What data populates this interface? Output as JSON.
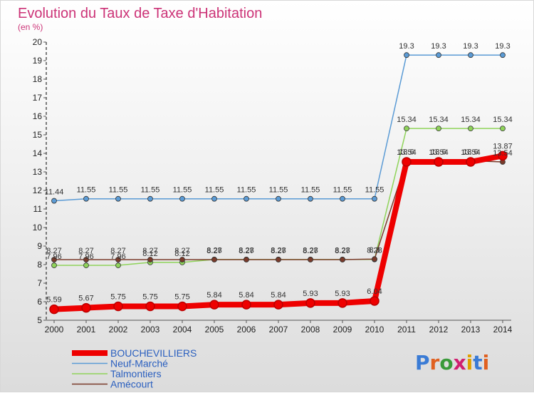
{
  "chart_data": {
    "type": "line",
    "title": "Evolution du Taux de Taxe d'Habitation",
    "subtitle": "(en %)",
    "x": [
      "2000",
      "2001",
      "2002",
      "2003",
      "2004",
      "2005",
      "2006",
      "2007",
      "2008",
      "2009",
      "2010",
      "2011",
      "2012",
      "2013",
      "2014"
    ],
    "ylim": [
      5,
      20
    ],
    "yticks": [
      5,
      6,
      7,
      8,
      9,
      10,
      11,
      12,
      13,
      14,
      15,
      16,
      17,
      18,
      19,
      20
    ],
    "grid": false,
    "legend_position": "bottom-left",
    "series": [
      {
        "name": "Neuf-Marché",
        "color": "#5b9bd5",
        "values": [
          11.44,
          11.55,
          11.55,
          11.55,
          11.55,
          11.55,
          11.55,
          11.55,
          11.55,
          11.55,
          11.55,
          19.3,
          19.3,
          19.3,
          19.3
        ],
        "labels": [
          "11.44",
          "11.55",
          "11.55",
          "11.55",
          "11.55",
          "11.55",
          "11.55",
          "11.55",
          "11.55",
          "11.55",
          "11.55",
          "19.3",
          "19.3",
          "19.3",
          "19.3"
        ]
      },
      {
        "name": "Talmontiers",
        "color": "#8fd35a",
        "values": [
          7.96,
          7.96,
          7.96,
          8.12,
          8.12,
          8.28,
          8.28,
          8.28,
          8.28,
          8.28,
          8.28,
          15.34,
          15.34,
          15.34,
          15.34
        ],
        "labels": [
          "7.96",
          "7.96",
          "7.96",
          "8.12",
          "8.12",
          "8.28",
          "8.28",
          "8.28",
          "8.28",
          "8.28",
          "8.28",
          "15.34",
          "15.34",
          "15.34",
          "15.34"
        ]
      },
      {
        "name": "Amécourt",
        "color": "#7a3a2a",
        "values": [
          8.27,
          8.27,
          8.27,
          8.27,
          8.27,
          8.27,
          8.27,
          8.27,
          8.27,
          8.27,
          8.3,
          13.6,
          13.6,
          13.6,
          13.54
        ],
        "labels": [
          "8.27",
          "8.27",
          "8.27",
          "8.27",
          "8.27",
          "8.27",
          "8.27",
          "8.27",
          "8.27",
          "8.27",
          "8.3",
          "13.6",
          "13.6",
          "13.6",
          "13.54"
        ]
      },
      {
        "name": "BOUCHEVILLIERS",
        "color": "#ee0000",
        "values": [
          5.59,
          5.67,
          5.75,
          5.75,
          5.75,
          5.84,
          5.84,
          5.84,
          5.93,
          5.93,
          6.04,
          13.54,
          13.54,
          13.54,
          13.87
        ],
        "labels": [
          "5.59",
          "5.67",
          "5.75",
          "5.75",
          "5.75",
          "5.84",
          "5.84",
          "5.84",
          "5.93",
          "5.93",
          "6.04",
          "13.54",
          "13.54",
          "13.54",
          "13.87"
        ]
      }
    ],
    "legend": [
      {
        "name": "BOUCHEVILLIERS",
        "color": "#ee0000"
      },
      {
        "name": "Neuf-Marché",
        "color": "#5b9bd5"
      },
      {
        "name": "Talmontiers",
        "color": "#8fd35a"
      },
      {
        "name": "Amécourt",
        "color": "#7a3a2a"
      }
    ]
  },
  "logo": {
    "text": "Proxiti"
  }
}
